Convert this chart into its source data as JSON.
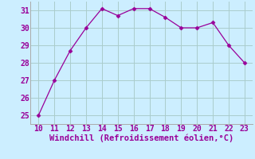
{
  "x": [
    10,
    11,
    12,
    13,
    14,
    15,
    16,
    17,
    18,
    19,
    20,
    21,
    22,
    23
  ],
  "y": [
    25.0,
    27.0,
    28.7,
    30.0,
    31.1,
    30.7,
    31.1,
    31.1,
    30.6,
    30.0,
    30.0,
    30.3,
    29.0,
    28.0
  ],
  "line_color": "#990099",
  "marker": "D",
  "marker_size": 2.5,
  "bg_color": "#cceeff",
  "grid_color": "#aacccc",
  "xlabel": "Windchill (Refroidissement éolien,°C)",
  "xlabel_color": "#990099",
  "xlabel_fontsize": 7.5,
  "tick_color": "#990099",
  "tick_fontsize": 7,
  "xlim": [
    9.5,
    23.5
  ],
  "ylim": [
    24.5,
    31.5
  ],
  "yticks": [
    25,
    26,
    27,
    28,
    29,
    30,
    31
  ],
  "xticks": [
    10,
    11,
    12,
    13,
    14,
    15,
    16,
    17,
    18,
    19,
    20,
    21,
    22,
    23
  ],
  "spine_color": "#aaaaaa"
}
